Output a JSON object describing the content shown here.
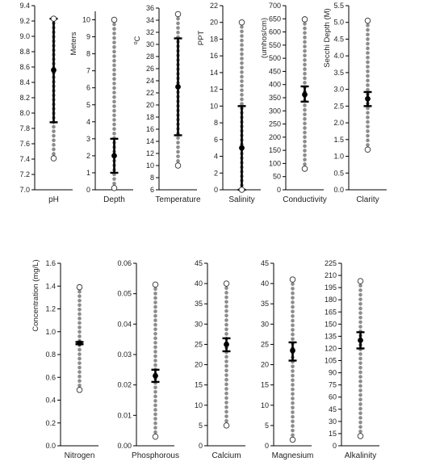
{
  "chart_data": [
    {
      "type": "range",
      "category": "pH",
      "ylabel": "",
      "ylim": [
        7.0,
        9.4
      ],
      "ticks": [
        7.0,
        7.2,
        7.4,
        7.6,
        7.8,
        8.0,
        8.2,
        8.4,
        8.6,
        8.8,
        9.0,
        9.2,
        9.4
      ],
      "decimals": 1,
      "min": 7.41,
      "max": 9.23,
      "mean": 8.56,
      "lower": 7.88,
      "upper": 9.23
    },
    {
      "type": "range",
      "category": "Depth",
      "ylabel": "Meters",
      "ylim": [
        0,
        10.5
      ],
      "ticks": [
        0,
        1,
        2,
        3,
        4,
        5,
        6,
        7,
        8,
        9,
        10
      ],
      "decimals": 0,
      "min": 0.1,
      "max": 10.0,
      "mean": 2.0,
      "lower": 1.0,
      "upper": 3.0
    },
    {
      "type": "range",
      "category": "Temperature",
      "ylabel": "oC",
      "ylim": [
        6,
        36
      ],
      "ticks": [
        6,
        8,
        10,
        12,
        14,
        16,
        18,
        20,
        22,
        24,
        26,
        28,
        30,
        32,
        34,
        36
      ],
      "decimals": 0,
      "min": 10.0,
      "max": 35.0,
      "mean": 23.0,
      "lower": 15.0,
      "upper": 31.0
    },
    {
      "type": "range",
      "category": "Salinity",
      "ylabel": "PPT",
      "ylim": [
        0,
        22
      ],
      "ticks": [
        0,
        2,
        4,
        6,
        8,
        10,
        12,
        14,
        16,
        18,
        20,
        22
      ],
      "decimals": 0,
      "min": 0.0,
      "max": 20.0,
      "mean": 5.0,
      "lower": 0.0,
      "upper": 10.0
    },
    {
      "type": "range",
      "category": "Conductivity",
      "ylabel": "(umhos/cm)",
      "ylim": [
        0,
        700
      ],
      "ticks": [
        0,
        50,
        100,
        150,
        200,
        250,
        300,
        350,
        400,
        450,
        500,
        550,
        600,
        650,
        700
      ],
      "decimals": 0,
      "min": 80,
      "max": 648,
      "mean": 362,
      "lower": 335,
      "upper": 393
    },
    {
      "type": "range",
      "category": "Clarity",
      "ylabel": "Secchi Depth (M)",
      "ylim": [
        0,
        5.5
      ],
      "ticks": [
        0.0,
        0.5,
        1.0,
        1.5,
        2.0,
        2.5,
        3.0,
        3.5,
        4.0,
        4.5,
        5.0,
        5.5
      ],
      "decimals": 1,
      "min": 1.2,
      "max": 5.05,
      "mean": 2.72,
      "lower": 2.5,
      "upper": 2.92
    },
    {
      "type": "range",
      "category": "Nitrogen",
      "ylabel": "Concentration (mg/L)",
      "ylim": [
        0.0,
        1.6
      ],
      "ticks": [
        0.0,
        0.2,
        0.4,
        0.6,
        0.8,
        1.0,
        1.2,
        1.4,
        1.6
      ],
      "decimals": 1,
      "min": 0.49,
      "max": 1.39,
      "mean": 0.9,
      "lower": 0.89,
      "upper": 0.91
    },
    {
      "type": "range",
      "category": "Phosphorous",
      "ylabel": "",
      "ylim": [
        0.0,
        0.06
      ],
      "ticks": [
        0.0,
        0.01,
        0.02,
        0.03,
        0.04,
        0.05,
        0.06
      ],
      "decimals": 2,
      "min": 0.003,
      "max": 0.053,
      "mean": 0.023,
      "lower": 0.021,
      "upper": 0.025
    },
    {
      "type": "range",
      "category": "Calcium",
      "ylabel": "",
      "ylim": [
        0,
        45
      ],
      "ticks": [
        0,
        5,
        10,
        15,
        20,
        25,
        30,
        35,
        40,
        45
      ],
      "decimals": 0,
      "min": 5.0,
      "max": 40.0,
      "mean": 25.0,
      "lower": 23.3,
      "upper": 26.5
    },
    {
      "type": "range",
      "category": "Magnesium",
      "ylabel": "",
      "ylim": [
        0,
        45
      ],
      "ticks": [
        0,
        5,
        10,
        15,
        20,
        25,
        30,
        35,
        40,
        45
      ],
      "decimals": 0,
      "min": 1.5,
      "max": 41.0,
      "mean": 23.5,
      "lower": 21.0,
      "upper": 25.5
    },
    {
      "type": "range",
      "category": "Alkalinity",
      "ylabel": "",
      "ylim": [
        0,
        225
      ],
      "ticks": [
        0,
        15,
        30,
        45,
        60,
        75,
        90,
        105,
        120,
        135,
        150,
        165,
        180,
        195,
        210,
        225
      ],
      "decimals": 0,
      "min": 12,
      "max": 203,
      "mean": 130,
      "lower": 120,
      "upper": 140
    }
  ],
  "colors": {
    "dots": "#8c8c8c",
    "bar": "#000000",
    "axis": "#000000",
    "open_marker_fill": "#ffffff"
  }
}
